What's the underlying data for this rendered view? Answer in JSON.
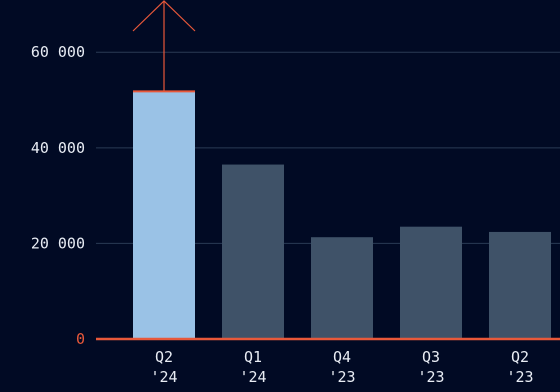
{
  "chart_data": {
    "type": "bar",
    "title": "",
    "xlabel": "",
    "ylabel": "",
    "categories": [
      [
        "Q2",
        "'24"
      ],
      [
        "Q1",
        "'24"
      ],
      [
        "Q4",
        "'23"
      ],
      [
        "Q3",
        "'23"
      ],
      [
        "Q2",
        "'23"
      ]
    ],
    "values": [
      51800,
      36500,
      21300,
      23500,
      22400
    ],
    "highlight_index": 0,
    "highlight_annotation": "upward-arrow",
    "ylim": [
      0,
      68000
    ],
    "y_ticks": [
      {
        "value": 0,
        "label": "0"
      },
      {
        "value": 20000,
        "label": "20 000"
      },
      {
        "value": 40000,
        "label": "40 000"
      },
      {
        "value": 60000,
        "label": "60 000"
      }
    ],
    "grid": true,
    "colors": {
      "background": "#010a24",
      "bar": "#3f5268",
      "bar_highlight": "#9ac2e6",
      "accent": "#e8583a",
      "grid": "#2a3a55",
      "text": "#e8ecf4"
    }
  }
}
